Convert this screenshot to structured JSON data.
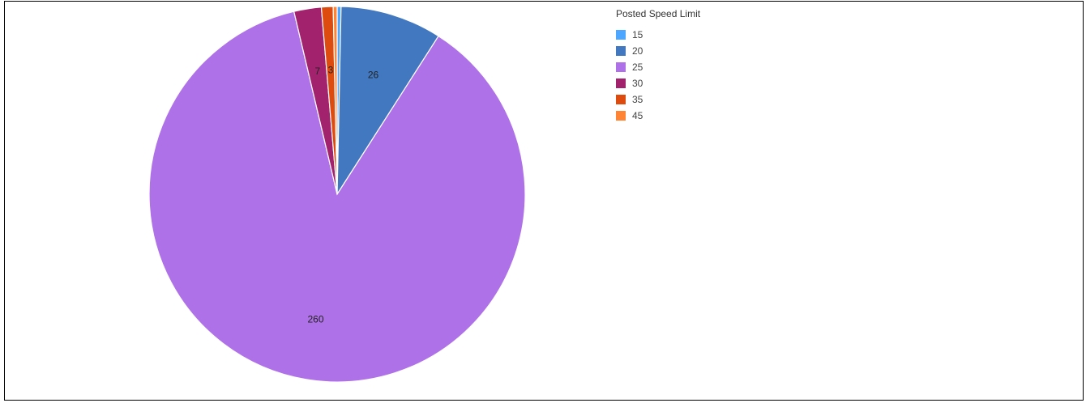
{
  "chart_data": {
    "type": "pie",
    "legend_title": "Posted Speed Limit",
    "legend_placement": "top-right",
    "slices": [
      {
        "label": "15",
        "value": 1,
        "color": "#4da6ff",
        "data_label": ""
      },
      {
        "label": "20",
        "value": 26,
        "color": "#4178c0",
        "data_label": "26"
      },
      {
        "label": "25",
        "value": 260,
        "color": "#af71e8",
        "data_label": "260"
      },
      {
        "label": "30",
        "value": 7,
        "color": "#a3226e",
        "data_label": "7"
      },
      {
        "label": "35",
        "value": 3,
        "color": "#dd4b0f",
        "data_label": "3"
      },
      {
        "label": "45",
        "value": 1,
        "color": "#ff8433",
        "data_label": ""
      }
    ]
  }
}
